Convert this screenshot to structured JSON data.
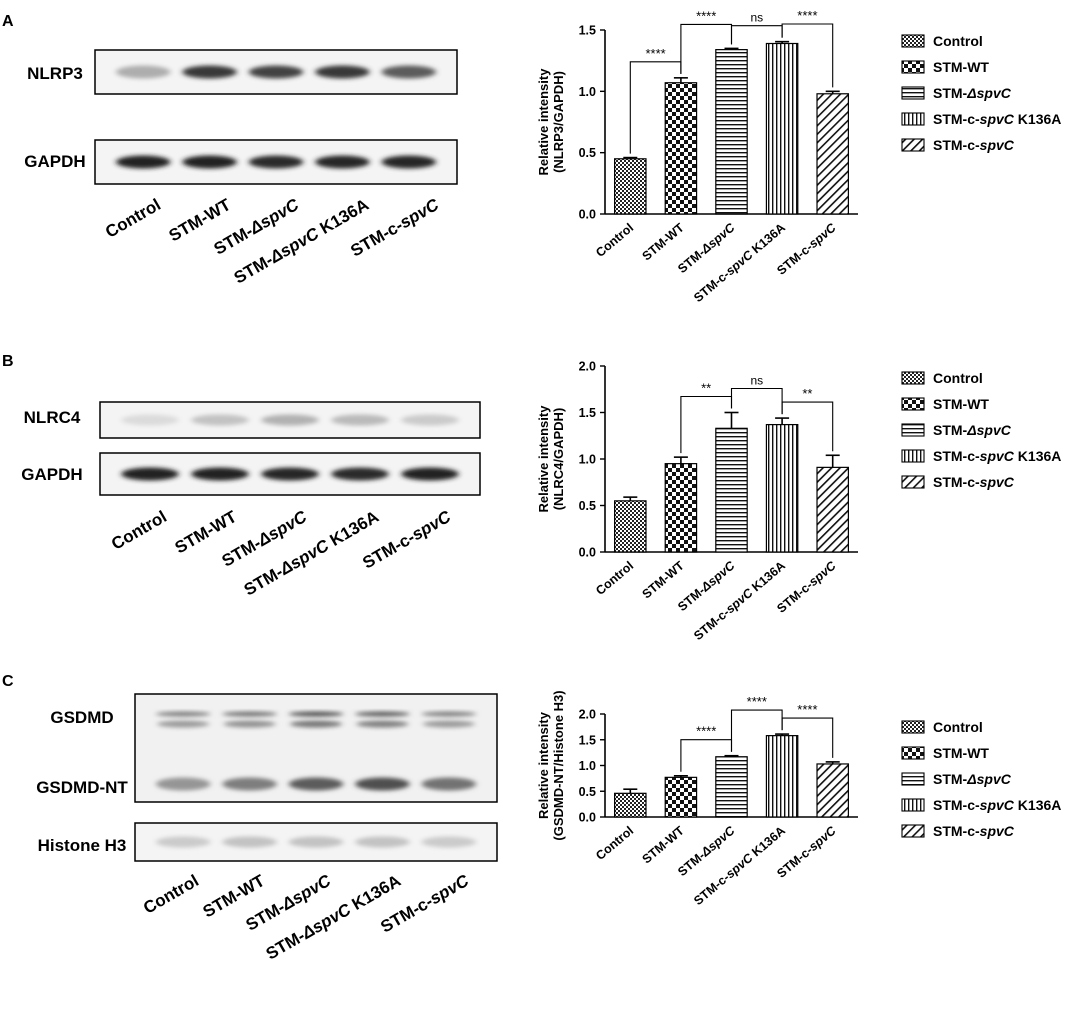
{
  "figure": {
    "panels": [
      {
        "letter": "A",
        "blot": {
          "bands": [
            {
              "label": "NLRP3",
              "intensity": [
                0.35,
                0.85,
                0.8,
                0.85,
                0.7
              ],
              "style": "dark"
            },
            {
              "label": "GAPDH",
              "intensity": [
                0.95,
                0.95,
                0.9,
                0.92,
                0.92
              ],
              "style": "dark"
            }
          ],
          "lane_labels": [
            "Control",
            "STM-WT",
            "STM-ΔspvC",
            "STM-ΔspvC K136A",
            "STM-c-spvC"
          ]
        }
      },
      {
        "letter": "B",
        "blot": {
          "bands": [
            {
              "label": "NLRC4",
              "intensity": [
                0.2,
                0.35,
                0.45,
                0.4,
                0.3
              ],
              "style": "faint"
            },
            {
              "label": "GAPDH",
              "intensity": [
                0.95,
                0.95,
                0.92,
                0.9,
                0.93
              ],
              "style": "dark"
            }
          ],
          "lane_labels": [
            "Control",
            "STM-WT",
            "STM-ΔspvC",
            "STM-ΔspvC K136A",
            "STM-c-spvC"
          ]
        }
      },
      {
        "letter": "C",
        "blot": {
          "bands": [
            {
              "label": "GSDMD",
              "intensity": [
                0.55,
                0.6,
                0.75,
                0.7,
                0.55
              ],
              "style": "double"
            },
            {
              "label": "GSDMD-NT",
              "intensity": [
                0.45,
                0.55,
                0.7,
                0.75,
                0.6
              ],
              "style": "medium"
            },
            {
              "label": "Histone H3",
              "intensity": [
                0.3,
                0.35,
                0.35,
                0.35,
                0.3
              ],
              "style": "faint"
            }
          ],
          "lane_labels": [
            "Control",
            "STM-WT",
            "STM-ΔspvC",
            "STM-ΔspvC K136A",
            "STM-c-spvC"
          ]
        }
      }
    ]
  },
  "chart_data": [
    {
      "type": "bar",
      "panel": "A",
      "categories": [
        "Control",
        "STM-WT",
        "STM-ΔspvC",
        "STM-c-spvC K136A",
        "STM-c-spvC"
      ],
      "values": [
        0.45,
        1.07,
        1.34,
        1.39,
        0.98
      ],
      "errors": [
        0.01,
        0.04,
        0.01,
        0.015,
        0.02
      ],
      "ylabel": [
        "Relative intensity",
        "(NLRP3/GAPDH)"
      ],
      "ylim": [
        0,
        1.5
      ],
      "yticks": [
        0.0,
        0.5,
        1.0,
        1.5
      ],
      "tick_labels": [
        "0.0",
        "0.5",
        "1.0",
        "1.5"
      ],
      "significance": [
        {
          "from": 0,
          "to": 1,
          "label": "****"
        },
        {
          "from": 1,
          "to": 2,
          "label": "****"
        },
        {
          "from": 2,
          "to": 3,
          "label": "ns"
        },
        {
          "from": 3,
          "to": 4,
          "label": "****"
        }
      ],
      "legend": [
        "Control",
        "STM-WT",
        "STM-ΔspvC",
        "STM-c-spvC K136A",
        "STM-c-spvC"
      ],
      "legend_position": "right",
      "grid": false
    },
    {
      "type": "bar",
      "panel": "B",
      "categories": [
        "Control",
        "STM-WT",
        "STM-ΔspvC",
        "STM-c-spvC K136A",
        "STM-c-spvC"
      ],
      "values": [
        0.55,
        0.95,
        1.33,
        1.37,
        0.91
      ],
      "errors": [
        0.04,
        0.07,
        0.17,
        0.07,
        0.13
      ],
      "ylabel": [
        "Relative intensity",
        "(NLRC4/GAPDH)"
      ],
      "ylim": [
        0,
        2.0
      ],
      "yticks": [
        0.0,
        0.5,
        1.0,
        1.5,
        2.0
      ],
      "tick_labels": [
        "0.0",
        "0.5",
        "1.0",
        "1.5",
        "2.0"
      ],
      "significance": [
        {
          "from": 1,
          "to": 2,
          "label": "**"
        },
        {
          "from": 2,
          "to": 3,
          "label": "ns"
        },
        {
          "from": 3,
          "to": 4,
          "label": "**"
        }
      ],
      "legend": [
        "Control",
        "STM-WT",
        "STM-ΔspvC",
        "STM-c-spvC K136A",
        "STM-c-spvC"
      ],
      "legend_position": "right",
      "grid": false
    },
    {
      "type": "bar",
      "panel": "C",
      "categories": [
        "Control",
        "STM-WT",
        "STM-ΔspvC",
        "STM-c-spvC K136A",
        "STM-c-spvC"
      ],
      "values": [
        0.46,
        0.77,
        1.17,
        1.58,
        1.03
      ],
      "errors": [
        0.08,
        0.03,
        0.02,
        0.03,
        0.04
      ],
      "ylabel": [
        "Relative intensity",
        "(GSDMD-NT/Histone H3)"
      ],
      "ylim": [
        0,
        2.0
      ],
      "yticks": [
        0.0,
        0.5,
        1.0,
        1.5,
        2.0
      ],
      "tick_labels": [
        "0.0",
        "0.5",
        "1.0",
        "1.5",
        "2.0"
      ],
      "significance": [
        {
          "from": 1,
          "to": 2,
          "label": "****"
        },
        {
          "from": 2,
          "to": 3,
          "label": "****"
        },
        {
          "from": 3,
          "to": 4,
          "label": "****"
        }
      ],
      "legend": [
        "Control",
        "STM-WT",
        "STM-ΔspvC",
        "STM-c-spvC K136A",
        "STM-c-spvC"
      ],
      "legend_position": "right",
      "grid": false
    }
  ]
}
